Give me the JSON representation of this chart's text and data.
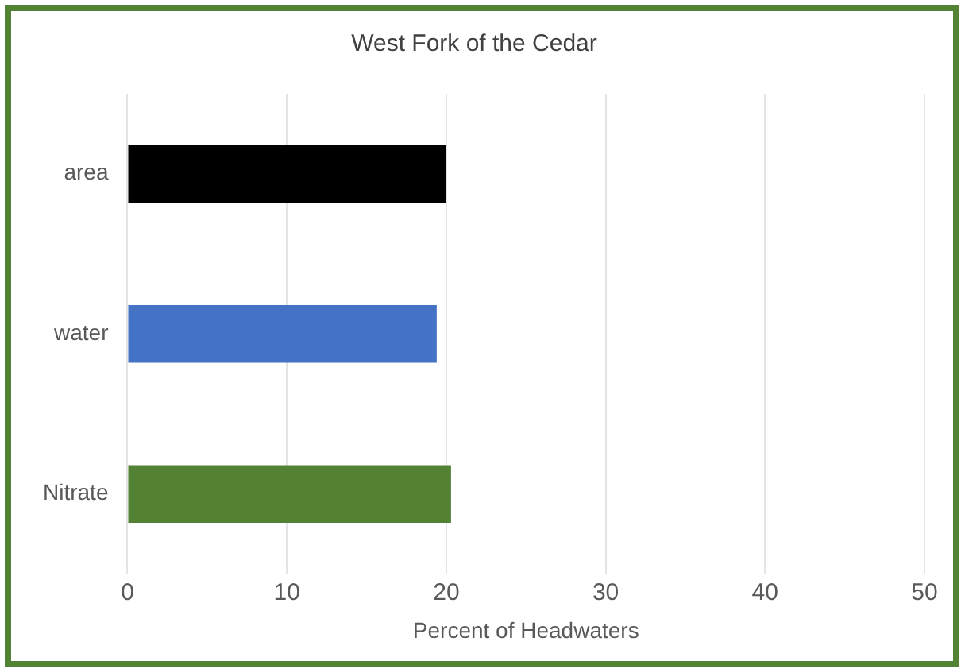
{
  "chart_data": {
    "type": "bar",
    "orientation": "horizontal",
    "title": "West Fork of the Cedar",
    "xlabel": "Percent of Headwaters",
    "categories": [
      "area",
      "water",
      "Nitrate"
    ],
    "values": [
      20,
      19.4,
      20.3
    ],
    "colors": [
      "#000000",
      "#4472c4",
      "#548235"
    ],
    "xlim": [
      0,
      50
    ],
    "xticks": [
      0,
      10,
      20,
      30,
      40,
      50
    ],
    "grid": "x",
    "legend": false
  }
}
